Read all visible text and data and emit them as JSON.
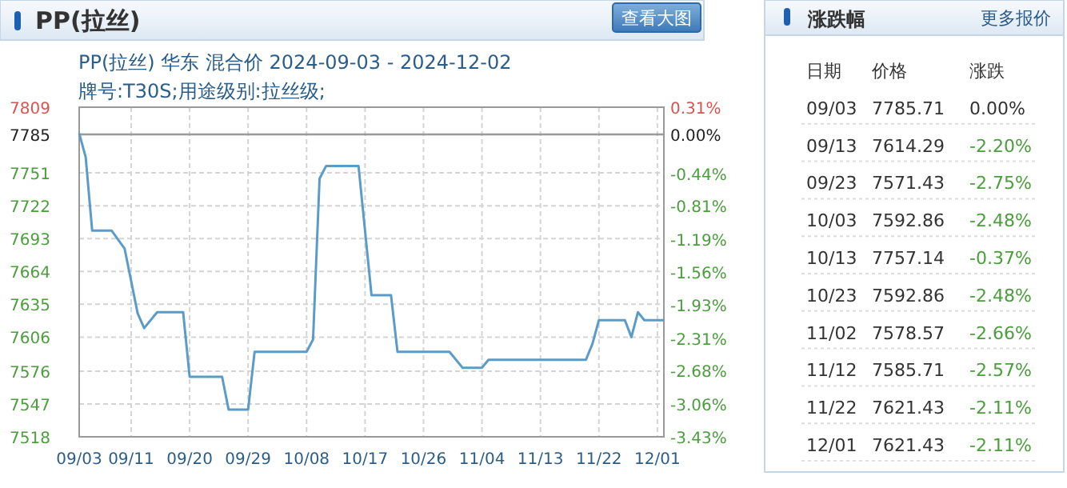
{
  "chart_data": [
    {
      "type": "line",
      "title": "PP(拉丝)",
      "subtitle": "PP(拉丝) 华东 混合价 2024-09-03 - 2024-12-02\n牌号:T30S;用途级别:拉丝级;",
      "annotations": [
        "查看大图"
      ],
      "x": [
        "2024-09-03",
        "2024-09-04",
        "2024-09-05",
        "2024-09-08",
        "2024-09-10",
        "2024-09-12",
        "2024-09-13",
        "2024-09-15",
        "2024-09-19",
        "2024-09-20",
        "2024-09-25",
        "2024-09-26",
        "2024-09-29",
        "2024-09-30",
        "2024-10-08",
        "2024-10-09",
        "2024-10-10",
        "2024-10-11",
        "2024-10-16",
        "2024-10-17",
        "2024-10-18",
        "2024-10-21",
        "2024-10-22",
        "2024-10-30",
        "2024-11-01",
        "2024-11-04",
        "2024-11-05",
        "2024-11-20",
        "2024-11-21",
        "2024-11-22",
        "2024-11-26",
        "2024-11-27",
        "2024-11-28",
        "2024-11-29",
        "2024-12-02"
      ],
      "series": [
        {
          "color": "#5b9bc8",
          "values": [
            7786,
            7765,
            7700,
            7700,
            7684,
            7627,
            7614,
            7628,
            7628,
            7571,
            7571,
            7542,
            7542,
            7593,
            7593,
            7604,
            7746,
            7757,
            7757,
            7700,
            7643,
            7643,
            7593,
            7593,
            7579,
            7579,
            7586,
            7586,
            7600,
            7621,
            7621,
            7606,
            7628,
            7621,
            7621
          ]
        }
      ],
      "xlim": [
        "2024-09-03",
        "2024-12-02"
      ],
      "xticks": [
        {
          "value": "2024-09-03",
          "label": "09/03"
        },
        {
          "value": "2024-09-11",
          "label": "09/11"
        },
        {
          "value": "2024-09-20",
          "label": "09/20"
        },
        {
          "value": "2024-09-29",
          "label": "09/29"
        },
        {
          "value": "2024-10-08",
          "label": "10/08"
        },
        {
          "value": "2024-10-17",
          "label": "10/17"
        },
        {
          "value": "2024-10-26",
          "label": "10/26"
        },
        {
          "value": "2024-11-04",
          "label": "11/04"
        },
        {
          "value": "2024-11-13",
          "label": "11/13"
        },
        {
          "value": "2024-11-22",
          "label": "11/22"
        },
        {
          "value": "2024-12-01",
          "label": "12/01"
        }
      ],
      "ylim": [
        7518,
        7809
      ],
      "yticks": [
        7518,
        7547,
        7576,
        7606,
        7635,
        7664,
        7693,
        7722,
        7751,
        7785,
        7809
      ],
      "y2lim": [
        -3.43,
        0.31
      ],
      "y2ticks": [
        {
          "value": -3.43,
          "label": "-3.43%"
        },
        {
          "value": -3.06,
          "label": "-3.06%"
        },
        {
          "value": -2.68,
          "label": "-2.68%"
        },
        {
          "value": -2.31,
          "label": "-2.31%"
        },
        {
          "value": -1.93,
          "label": "-1.93%"
        },
        {
          "value": -1.56,
          "label": "-1.56%"
        },
        {
          "value": -1.19,
          "label": "-1.19%"
        },
        {
          "value": -0.81,
          "label": "-0.81%"
        },
        {
          "value": -0.44,
          "label": "-0.44%"
        },
        {
          "value": 0,
          "label": "0.00%"
        },
        {
          "value": 0.31,
          "label": "0.31%"
        }
      ],
      "ref_lines": [
        {
          "axis": "y",
          "value": 7785,
          "color": "#999999"
        }
      ],
      "grid": true
    },
    {
      "type": "other",
      "title": "涨跌幅",
      "annotations": [
        "更多报价",
        "日期",
        "价格",
        "涨跌",
        "09/03",
        "7785.71",
        "0.00%",
        "09/13",
        "7614.29",
        "-2.20%",
        "09/23",
        "7571.43",
        "-2.75%",
        "10/03",
        "7592.86",
        "-2.48%",
        "10/13",
        "7757.14",
        "-0.37%",
        "10/23",
        "7592.86",
        "-2.48%",
        "11/02",
        "7578.57",
        "-2.66%",
        "11/12",
        "7585.71",
        "-2.57%",
        "11/22",
        "7621.43",
        "-2.11%",
        "12/01",
        "7621.43",
        "-2.11%"
      ]
    }
  ]
}
